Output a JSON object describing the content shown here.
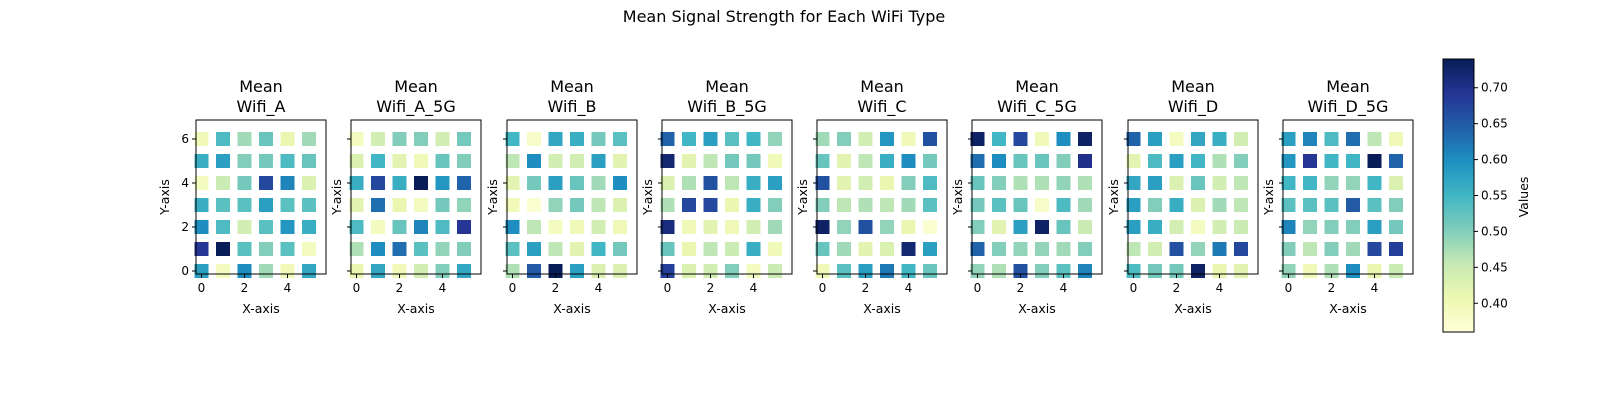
{
  "figure": {
    "title": "Mean Signal Strength for Each WiFi Type"
  },
  "chart_data": {
    "type": "heatmap",
    "title": "Mean Signal Strength for Each WiFi Type",
    "xlabel": "X-axis",
    "ylabel": "Y-axis",
    "x_ticks": [
      0,
      2,
      4
    ],
    "y_ticks": [
      0,
      2,
      4,
      6
    ],
    "x_values": [
      0,
      1,
      2,
      3,
      4,
      5
    ],
    "y_values": [
      0,
      1,
      2,
      3,
      4,
      5,
      6
    ],
    "colormap": "YlGnBu",
    "colorbar": {
      "label": "Values",
      "min": 0.36,
      "max": 0.74,
      "ticks": [
        "0.40",
        "0.45",
        "0.50",
        "0.55",
        "0.60",
        "0.65",
        "0.70"
      ]
    },
    "panels": [
      {
        "title_line1": "Mean",
        "title_line2": "Wifi_A",
        "grid": [
          [
            0.58,
            0.39,
            0.6,
            0.48,
            0.4,
            0.57
          ],
          [
            0.69,
            0.74,
            0.53,
            0.5,
            0.53,
            0.39
          ],
          [
            0.6,
            0.54,
            0.44,
            0.53,
            0.59,
            0.56
          ],
          [
            0.56,
            0.53,
            0.53,
            0.58,
            0.53,
            0.53
          ],
          [
            0.39,
            0.45,
            0.51,
            0.67,
            0.61,
            0.43
          ],
          [
            0.56,
            0.58,
            0.5,
            0.51,
            0.54,
            0.52
          ],
          [
            0.4,
            0.54,
            0.48,
            0.52,
            0.41,
            0.48
          ]
        ]
      },
      {
        "title_line1": "Mean",
        "title_line2": "Wifi_A_5G",
        "grid": [
          [
            0.41,
            0.57,
            0.4,
            0.44,
            0.5,
            0.57
          ],
          [
            0.47,
            0.6,
            0.63,
            0.53,
            0.49,
            0.5
          ],
          [
            0.54,
            0.39,
            0.52,
            0.61,
            0.54,
            0.69
          ],
          [
            0.42,
            0.63,
            0.41,
            0.39,
            0.51,
            0.49
          ],
          [
            0.56,
            0.67,
            0.56,
            0.74,
            0.59,
            0.64
          ],
          [
            0.43,
            0.55,
            0.42,
            0.4,
            0.52,
            0.5
          ],
          [
            0.39,
            0.44,
            0.5,
            0.5,
            0.44,
            0.51
          ]
        ]
      },
      {
        "title_line1": "Mean",
        "title_line2": "Wifi_B",
        "grid": [
          [
            0.47,
            0.65,
            0.74,
            0.58,
            0.43,
            0.43
          ],
          [
            0.53,
            0.58,
            0.46,
            0.42,
            0.55,
            0.51
          ],
          [
            0.6,
            0.46,
            0.39,
            0.4,
            0.44,
            0.4
          ],
          [
            0.4,
            0.37,
            0.49,
            0.51,
            0.46,
            0.43
          ],
          [
            0.42,
            0.51,
            0.58,
            0.52,
            0.48,
            0.6
          ],
          [
            0.46,
            0.6,
            0.44,
            0.44,
            0.58,
            0.42
          ],
          [
            0.55,
            0.38,
            0.57,
            0.56,
            0.51,
            0.53
          ]
        ]
      },
      {
        "title_line1": "Mean",
        "title_line2": "Wifi_B_5G",
        "grid": [
          [
            0.68,
            0.43,
            0.44,
            0.5,
            0.39,
            0.45
          ],
          [
            0.52,
            0.41,
            0.46,
            0.45,
            0.56,
            0.4
          ],
          [
            0.71,
            0.4,
            0.42,
            0.4,
            0.44,
            0.48
          ],
          [
            0.47,
            0.67,
            0.67,
            0.41,
            0.56,
            0.5
          ],
          [
            0.43,
            0.47,
            0.66,
            0.46,
            0.56,
            0.58
          ],
          [
            0.72,
            0.42,
            0.46,
            0.51,
            0.51,
            0.4
          ],
          [
            0.64,
            0.55,
            0.58,
            0.53,
            0.55,
            0.49
          ]
        ]
      },
      {
        "title_line1": "Mean",
        "title_line2": "Wifi_C",
        "grid": [
          [
            0.4,
            0.53,
            0.58,
            0.62,
            0.55,
            0.52
          ],
          [
            0.52,
            0.48,
            0.42,
            0.43,
            0.72,
            0.58
          ],
          [
            0.73,
            0.49,
            0.66,
            0.49,
            0.41,
            0.37
          ],
          [
            0.5,
            0.46,
            0.47,
            0.46,
            0.48,
            0.53
          ],
          [
            0.66,
            0.42,
            0.44,
            0.41,
            0.5,
            0.54
          ],
          [
            0.52,
            0.42,
            0.46,
            0.56,
            0.6,
            0.51
          ],
          [
            0.48,
            0.5,
            0.44,
            0.59,
            0.4,
            0.66
          ]
        ]
      },
      {
        "title_line1": "Mean",
        "title_line2": "Wifi_C_5G",
        "grid": [
          [
            0.49,
            0.47,
            0.66,
            0.5,
            0.53,
            0.61
          ],
          [
            0.64,
            0.5,
            0.49,
            0.49,
            0.48,
            0.5
          ],
          [
            0.5,
            0.42,
            0.58,
            0.73,
            0.52,
            0.45
          ],
          [
            0.51,
            0.53,
            0.52,
            0.38,
            0.54,
            0.48
          ],
          [
            0.52,
            0.5,
            0.47,
            0.47,
            0.49,
            0.47
          ],
          [
            0.63,
            0.6,
            0.52,
            0.52,
            0.5,
            0.7
          ],
          [
            0.73,
            0.55,
            0.67,
            0.4,
            0.6,
            0.73
          ]
        ]
      },
      {
        "title_line1": "Mean",
        "title_line2": "Wifi_D",
        "grid": [
          [
            0.54,
            0.51,
            0.51,
            0.73,
            0.41,
            0.42
          ],
          [
            0.46,
            0.44,
            0.66,
            0.49,
            0.62,
            0.67
          ],
          [
            0.58,
            0.56,
            0.44,
            0.39,
            0.44,
            0.45
          ],
          [
            0.58,
            0.5,
            0.56,
            0.43,
            0.48,
            0.46
          ],
          [
            0.57,
            0.58,
            0.43,
            0.52,
            0.44,
            0.46
          ],
          [
            0.42,
            0.54,
            0.58,
            0.55,
            0.47,
            0.5
          ],
          [
            0.64,
            0.58,
            0.39,
            0.57,
            0.56,
            0.44
          ]
        ]
      },
      {
        "title_line1": "Mean",
        "title_line2": "Wifi_D_5G",
        "grid": [
          [
            0.49,
            0.4,
            0.47,
            0.6,
            0.41,
            0.45
          ],
          [
            0.5,
            0.46,
            0.5,
            0.48,
            0.67,
            0.68
          ],
          [
            0.61,
            0.49,
            0.5,
            0.5,
            0.58,
            0.51
          ],
          [
            0.53,
            0.53,
            0.53,
            0.65,
            0.53,
            0.5
          ],
          [
            0.55,
            0.55,
            0.49,
            0.49,
            0.55,
            0.43
          ],
          [
            0.59,
            0.69,
            0.55,
            0.55,
            0.74,
            0.64
          ],
          [
            0.58,
            0.61,
            0.54,
            0.63,
            0.46,
            0.4
          ]
        ]
      }
    ]
  }
}
